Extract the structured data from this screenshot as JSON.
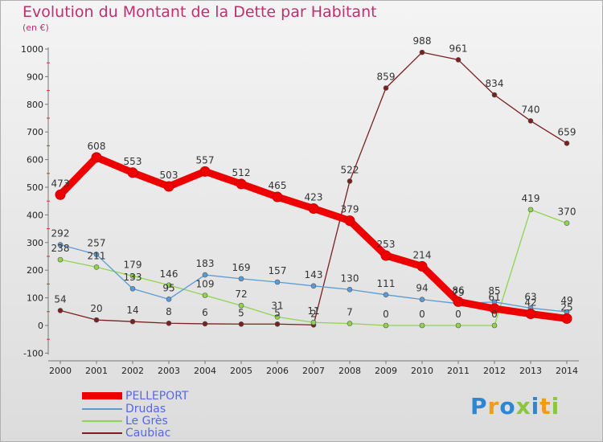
{
  "title": "Evolution du Montant de la Dette par Habitant",
  "unit_label": "(en €)",
  "logo": {
    "text": "Proxiti",
    "colors": [
      "#2c86d6",
      "#f29a1a",
      "#2c86d6",
      "#8cc63f",
      "#2c86d6",
      "#f29a1a",
      "#8cc63f"
    ]
  },
  "chart_data": {
    "type": "line",
    "title": "Evolution du Montant de la Dette par Habitant",
    "ylabel": "(en €)",
    "xlabel": "",
    "ylim": [
      -100,
      1000
    ],
    "yticks": [
      -100,
      0,
      100,
      200,
      300,
      400,
      500,
      600,
      700,
      800,
      900,
      1000
    ],
    "x": [
      "2000",
      "2001",
      "2002",
      "2003",
      "2004",
      "2005",
      "2006",
      "2007",
      "2008",
      "2009",
      "2010",
      "2011",
      "2012",
      "2013",
      "2014"
    ],
    "grid": false,
    "legend_position": "bottom-left",
    "series": [
      {
        "name": "PELLEPORT",
        "color": "#ee0000",
        "values": [
          473,
          608,
          553,
          503,
          557,
          512,
          465,
          423,
          379,
          253,
          214,
          86,
          61,
          42,
          25
        ],
        "labels": [
          "473",
          "608",
          "553",
          "503",
          "557",
          "512",
          "465",
          "423",
          "379",
          "253",
          "214",
          "86",
          "61",
          "42",
          "25"
        ]
      },
      {
        "name": "Drudas",
        "color": "#5b9bd5",
        "values": [
          292,
          257,
          133,
          95,
          183,
          169,
          157,
          143,
          130,
          111,
          94,
          79,
          85,
          63,
          49
        ],
        "labels": [
          "292",
          "257",
          "133",
          "95",
          "183",
          "169",
          "157",
          "143",
          "130",
          "111",
          "94",
          "79",
          "85",
          "63",
          "49"
        ]
      },
      {
        "name": "Le Grès",
        "color": "#8fd44f",
        "values": [
          238,
          211,
          179,
          146,
          109,
          72,
          31,
          11,
          7,
          0,
          0,
          0,
          0,
          419,
          370
        ],
        "labels": [
          "238",
          "211",
          "179",
          "146",
          "109",
          "72",
          "31",
          "11",
          "7",
          "0",
          "0",
          "0",
          "0",
          "419",
          "370"
        ]
      },
      {
        "name": "Caubiac",
        "color": "#7a2020",
        "values": [
          54,
          20,
          14,
          8,
          6,
          5,
          5,
          2,
          522,
          859,
          988,
          961,
          834,
          740,
          659
        ],
        "labels": [
          "54",
          "20",
          "14",
          "8",
          "6",
          "5",
          "5",
          "2",
          "522",
          "859",
          "988",
          "961",
          "834",
          "740",
          "659"
        ]
      }
    ]
  }
}
